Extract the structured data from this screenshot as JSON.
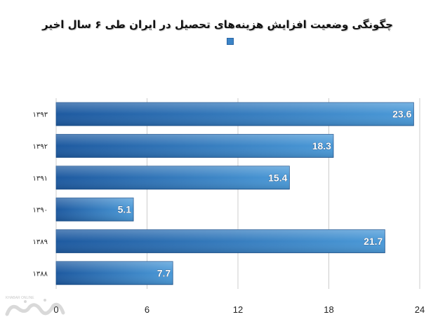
{
  "chart_data": {
    "type": "bar",
    "orientation": "horizontal",
    "title": "چگونگی وضعیت افزایش هزینه‌های تحصیل در ایران طی ۶ سال اخیر",
    "categories": [
      "۱۳۹۳",
      "۱۳۹۲",
      "۱۳۹۱",
      "۱۳۹۰",
      "۱۳۸۹",
      "۱۳۸۸"
    ],
    "values": [
      23.6,
      18.3,
      15.4,
      5.1,
      21.7,
      7.7
    ],
    "value_labels": [
      "23.6",
      "18.3",
      "15.4",
      "5.1",
      "21.7",
      "7.7"
    ],
    "xlim": [
      0,
      24
    ],
    "xticks": [
      0,
      6,
      12,
      18,
      24
    ],
    "xtick_labels": [
      "0",
      "6",
      "12",
      "18",
      "24"
    ],
    "grid": "vertical",
    "legend": "top-center",
    "colors": {
      "bar_light": "#4b9ad8",
      "bar_dark": "#1e5aa0",
      "grid": "#cccccc"
    }
  },
  "watermark": {
    "logo": "khabaronline-logo"
  }
}
